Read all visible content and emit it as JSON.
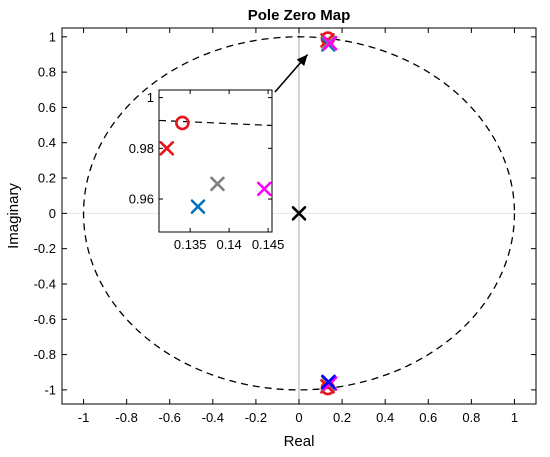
{
  "chart_data": {
    "type": "scatter",
    "title": "Pole Zero Map",
    "xlabel": "Real",
    "ylabel": "Imaginary",
    "xlim": [
      -1.1,
      1.1
    ],
    "ylim": [
      -1.08,
      1.05
    ],
    "xticks": [
      -1,
      -0.8,
      -0.6,
      -0.4,
      -0.2,
      0,
      0.2,
      0.4,
      0.6,
      0.8,
      1
    ],
    "xtick_labels": [
      "-1",
      "-0.8",
      "-0.6",
      "-0.4",
      "-0.2",
      "0",
      "0.2",
      "0.4",
      "0.6",
      "0.8",
      "1"
    ],
    "yticks": [
      -1,
      -0.8,
      -0.6,
      -0.4,
      -0.2,
      0,
      0.2,
      0.4,
      0.6,
      0.8,
      1
    ],
    "ytick_labels": [
      "-1",
      "-0.8",
      "-0.6",
      "-0.4",
      "-0.2",
      "0",
      "0.2",
      "0.4",
      "0.6",
      "0.8",
      "1"
    ],
    "grid": false,
    "unit_circle": true,
    "series": [
      {
        "marker": "o",
        "color": "#e8141c",
        "points": [
          [
            0.134,
            0.99
          ],
          [
            0.134,
            -0.99
          ]
        ]
      },
      {
        "marker": "x",
        "color": "#e8141c",
        "points": [
          [
            0.132,
            0.98
          ],
          [
            0.132,
            -0.98
          ]
        ]
      },
      {
        "marker": "x",
        "color": "#0072bd",
        "points": [
          [
            0.136,
            0.957
          ],
          [
            0.136,
            -0.957
          ]
        ]
      },
      {
        "marker": "x",
        "color": "#808080",
        "points": [
          [
            0.1385,
            0.966
          ],
          [
            0.1385,
            -0.966
          ]
        ]
      },
      {
        "marker": "x",
        "color": "#ff00ff",
        "points": [
          [
            0.1445,
            0.964
          ],
          [
            0.1445,
            -0.964
          ]
        ]
      },
      {
        "marker": "x",
        "color": "#0000ff",
        "points": [
          [
            0.137,
            -0.955
          ]
        ]
      },
      {
        "marker": "x",
        "color": "#000000",
        "points": [
          [
            0.0,
            0.0
          ]
        ]
      }
    ],
    "inset": {
      "xlim": [
        0.131,
        0.1455
      ],
      "ylim": [
        0.947,
        1.003
      ],
      "xticks": [
        0.135,
        0.14,
        0.145
      ],
      "xtick_labels": [
        "0.135",
        "0.14",
        "0.145"
      ],
      "yticks": [
        0.96,
        0.98,
        1
      ],
      "ytick_labels": [
        "0.96",
        "0.98",
        "1"
      ],
      "circle_crossing": [
        [
          0.131,
          0.991
        ],
        [
          0.1455,
          0.989
        ]
      ]
    }
  }
}
